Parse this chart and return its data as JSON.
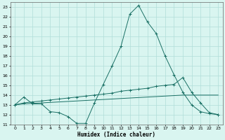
{
  "xlabel": "Humidex (Indice chaleur)",
  "bg_color": "#d9f5f0",
  "grid_color": "#b0ddd8",
  "line_color": "#1a7065",
  "xlim": [
    -0.5,
    23.5
  ],
  "ylim": [
    11,
    23.5
  ],
  "yticks": [
    11,
    12,
    13,
    14,
    15,
    16,
    17,
    18,
    19,
    20,
    21,
    22,
    23
  ],
  "xticks": [
    0,
    1,
    2,
    3,
    4,
    5,
    6,
    7,
    8,
    9,
    10,
    11,
    12,
    13,
    14,
    15,
    16,
    17,
    18,
    19,
    20,
    21,
    22,
    23
  ],
  "curve1_x": [
    0,
    1,
    2,
    3,
    4,
    5,
    6,
    7,
    8,
    9,
    10,
    11,
    12,
    13,
    14,
    15,
    16,
    17,
    18,
    19,
    20,
    21,
    22,
    23
  ],
  "curve1_y": [
    13.0,
    13.8,
    13.1,
    13.1,
    12.3,
    12.2,
    11.8,
    11.1,
    11.1,
    13.2,
    15.1,
    17.0,
    19.0,
    22.3,
    23.2,
    21.5,
    20.3,
    18.0,
    16.1,
    14.3,
    13.0,
    12.3,
    12.1,
    12.0
  ],
  "curve2_x": [
    0,
    1,
    2,
    3,
    4,
    5,
    6,
    7,
    8,
    9,
    10,
    11,
    12,
    13,
    14,
    15,
    16,
    17,
    18,
    19,
    20,
    21,
    22,
    23
  ],
  "curve2_y": [
    13.0,
    13.2,
    13.3,
    13.4,
    13.5,
    13.6,
    13.7,
    13.8,
    13.9,
    14.0,
    14.1,
    14.2,
    14.4,
    14.5,
    14.6,
    14.7,
    14.9,
    15.0,
    15.1,
    15.8,
    14.3,
    13.2,
    12.2,
    12.0
  ],
  "curve3_x": [
    0,
    1,
    2,
    3,
    4,
    5,
    6,
    7,
    8,
    9,
    10,
    11,
    12,
    13,
    14,
    15,
    16,
    17,
    18,
    19,
    20,
    21,
    22,
    23
  ],
  "curve3_y": [
    13.0,
    13.1,
    13.15,
    13.2,
    13.25,
    13.3,
    13.35,
    13.4,
    13.45,
    13.5,
    13.55,
    13.6,
    13.65,
    13.7,
    13.75,
    13.8,
    13.85,
    13.9,
    13.95,
    14.0,
    14.0,
    14.0,
    14.0,
    14.0
  ]
}
